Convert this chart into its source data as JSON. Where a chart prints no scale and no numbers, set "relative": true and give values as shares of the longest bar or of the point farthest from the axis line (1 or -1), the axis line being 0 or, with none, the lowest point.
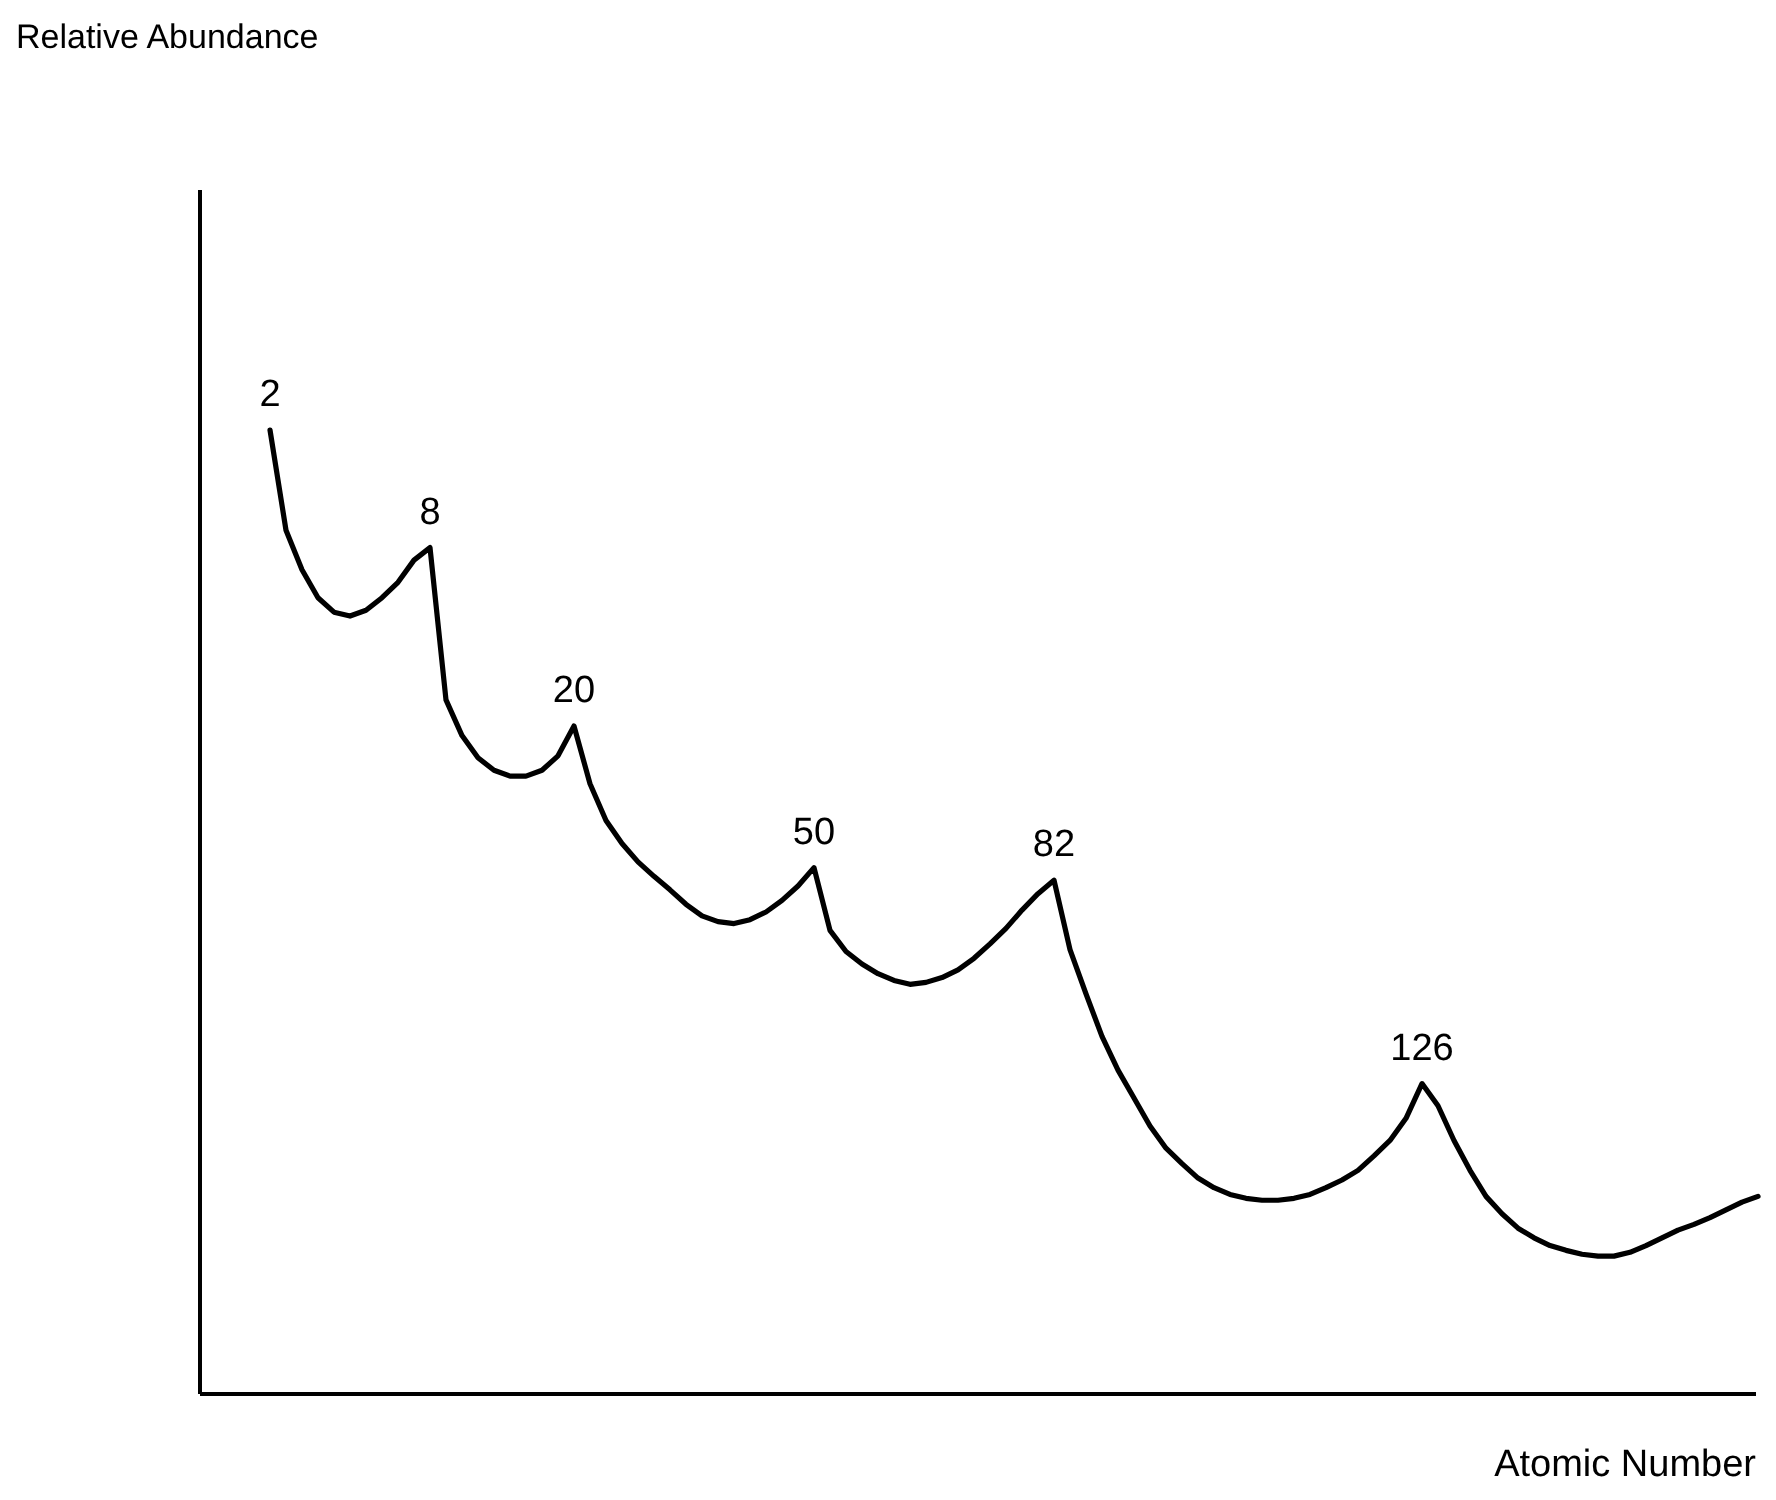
{
  "chart_data": {
    "type": "line",
    "relative": true,
    "xlabel": "Atomic Number",
    "categories": [
      null,
      null,
      null,
      null,
      null,
      null,
      null,
      null,
      null,
      null,
      null,
      null,
      null,
      null,
      null,
      null,
      null,
      null,
      null,
      null,
      null,
      null,
      null,
      null,
      null,
      null,
      null,
      null,
      null,
      null,
      null,
      null,
      null,
      null,
      null,
      null,
      null,
      null,
      null,
      null,
      null,
      null,
      null,
      null,
      null,
      null,
      null,
      null,
      null,
      null,
      null,
      null,
      null,
      null,
      null,
      null,
      null,
      null,
      null,
      null,
      null,
      null,
      null,
      null,
      null,
      null,
      null,
      null,
      null,
      null,
      null,
      null,
      null,
      null,
      null,
      null,
      null,
      null,
      null,
      null,
      null,
      null,
      null,
      null,
      null,
      null,
      null,
      null,
      null,
      null,
      null,
      null,
      null,
      null,
      null,
      null,
      null,
      null
    ],
    "series": [
      {
        "color": "#000000",
        "values": [
          null,
          null,
          null,
          null,
          1,
          0.896,
          0.855,
          0.826,
          0.811,
          0.807,
          0.813,
          0.826,
          0.842,
          0.865,
          0.878,
          0.72,
          0.683,
          0.66,
          0.647,
          0.641,
          0.641,
          0.647,
          0.662,
          0.693,
          0.633,
          0.595,
          0.571,
          0.552,
          0.537,
          0.523,
          0.508,
          0.496,
          0.49,
          0.488,
          0.492,
          0.5,
          0.512,
          0.527,
          0.546,
          0.481,
          0.459,
          0.446,
          0.436,
          0.429,
          0.425,
          0.427,
          0.432,
          0.44,
          0.452,
          0.467,
          0.483,
          0.502,
          0.519,
          0.533,
          0.461,
          0.415,
          0.371,
          0.336,
          0.307,
          0.278,
          0.255,
          0.239,
          0.224,
          0.214,
          0.207,
          0.203,
          0.201,
          0.201,
          0.203,
          0.207,
          0.214,
          0.222,
          0.232,
          0.247,
          0.263,
          0.286,
          0.322,
          0.299,
          0.263,
          0.232,
          0.205,
          0.187,
          0.172,
          0.162,
          0.154,
          0.149,
          0.145,
          0.143,
          0.143,
          0.147,
          0.154,
          0.162,
          0.17,
          0.176,
          0.183,
          0.191,
          0.199,
          0.205
        ]
      }
    ],
    "annotations": [
      "Relative Abundance",
      {
        "text": "2",
        "y": 1
      },
      {
        "text": "8",
        "y": 0.878
      },
      {
        "text": "20",
        "y": 0.693
      },
      {
        "text": "50",
        "y": 0.546
      },
      {
        "text": "82",
        "y": 0.533
      },
      {
        "text": "126",
        "y": 0.322
      }
    ]
  }
}
